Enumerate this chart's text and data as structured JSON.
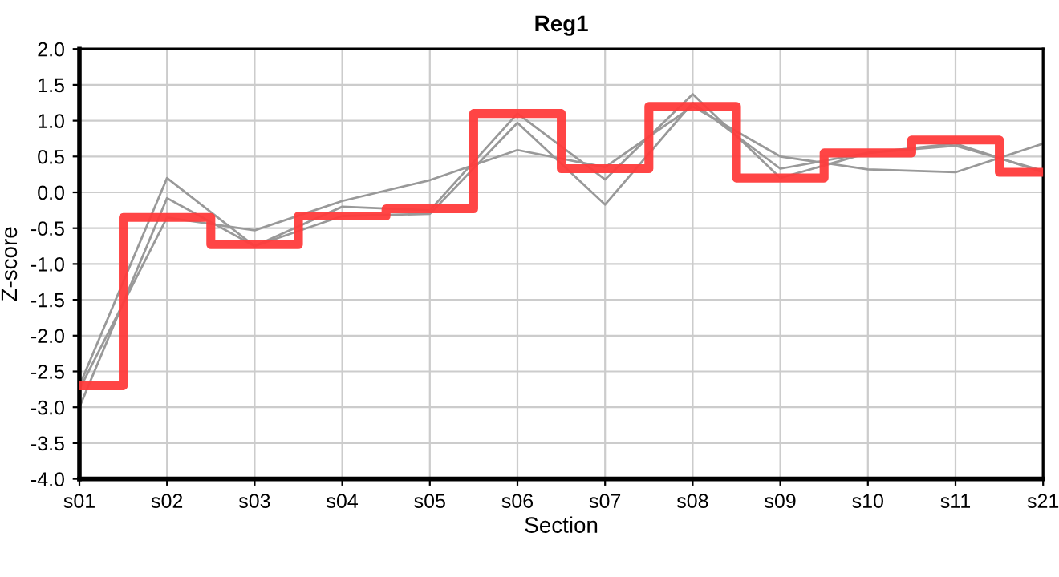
{
  "chart_data": {
    "type": "line",
    "title": "Reg1",
    "xlabel": "Section",
    "ylabel": "Z-score",
    "categories": [
      "s01",
      "s02",
      "s03",
      "s04",
      "s05",
      "s06",
      "s07",
      "s08",
      "s09",
      "s10",
      "s11",
      "s21"
    ],
    "series": [
      {
        "color": "#999999",
        "values": [
          -2.75,
          -0.35,
          -0.53,
          -0.12,
          0.17,
          0.59,
          0.35,
          1.2,
          0.5,
          0.32,
          0.28,
          0.68
        ]
      },
      {
        "color": "#999999",
        "values": [
          -2.7,
          0.2,
          -0.75,
          -0.2,
          -0.25,
          1.1,
          0.18,
          1.37,
          0.2,
          0.55,
          0.68,
          0.28
        ]
      },
      {
        "color": "#999999",
        "values": [
          -3.0,
          -0.08,
          -0.75,
          -0.33,
          -0.3,
          0.97,
          -0.17,
          1.25,
          0.33,
          0.55,
          0.65,
          0.3
        ]
      },
      {
        "type": "step",
        "color": "#ff3b3b",
        "values": [
          -2.7,
          -0.35,
          -0.73,
          -0.33,
          -0.23,
          1.1,
          0.33,
          1.2,
          0.2,
          0.55,
          0.73,
          0.28
        ]
      }
    ],
    "ylim": [
      -4.0,
      2.0
    ],
    "yticks": [
      {
        "value": -4,
        "label": "-4.0"
      },
      {
        "value": -3.5,
        "label": "-3.5"
      },
      {
        "value": -3,
        "label": "-3.0"
      },
      {
        "value": -2.5,
        "label": "-2.5"
      },
      {
        "value": -2,
        "label": "-2.0"
      },
      {
        "value": -1.5,
        "label": "-1.5"
      },
      {
        "value": -1,
        "label": "-1.0"
      },
      {
        "value": -0.5,
        "label": "-0.5"
      },
      {
        "value": 0,
        "label": "0.0"
      },
      {
        "value": 0.5,
        "label": "0.5"
      },
      {
        "value": 1,
        "label": "1.0"
      },
      {
        "value": 1.5,
        "label": "1.5"
      },
      {
        "value": 2,
        "label": "2.0"
      }
    ],
    "grid": true,
    "line_style": "solid",
    "marker": "none"
  }
}
